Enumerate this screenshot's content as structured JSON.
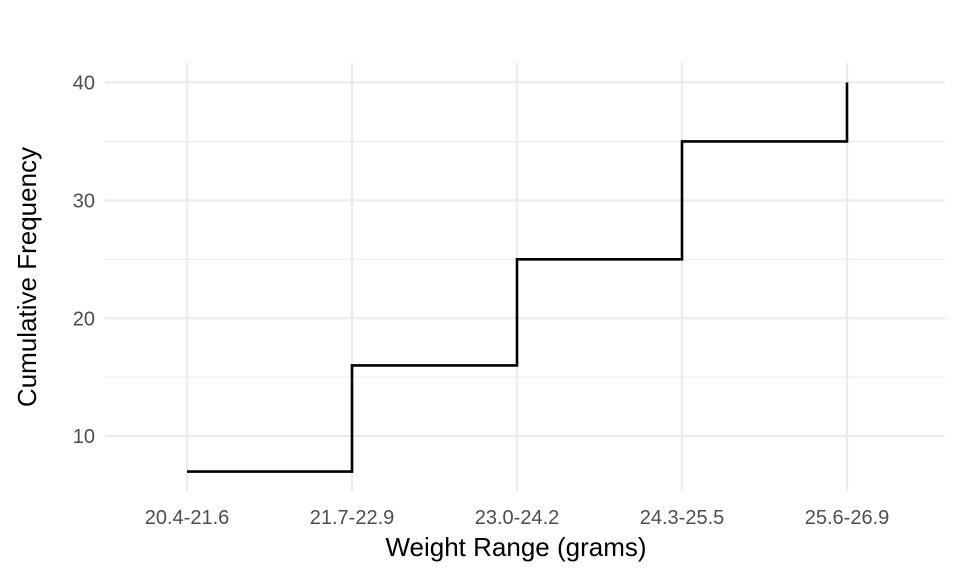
{
  "chart_data": {
    "type": "line",
    "style": "step",
    "title": "",
    "xlabel": "Weight Range (grams)",
    "ylabel": "Cumulative Frequency",
    "categories": [
      "20.4-21.6",
      "21.7-22.9",
      "23.0-24.2",
      "24.3-25.5",
      "25.6-26.9"
    ],
    "series": [
      {
        "values": [
          7,
          16,
          25,
          35,
          40
        ]
      }
    ],
    "ylim": [
      5.35,
      41.65
    ],
    "yticks": [
      10,
      20,
      30,
      40
    ],
    "grid": true,
    "legend": "none",
    "colors": {
      "line": "#000000",
      "grid": "#ebebeb",
      "tick_text": "#4d4d4d",
      "background": "#ffffff"
    }
  }
}
